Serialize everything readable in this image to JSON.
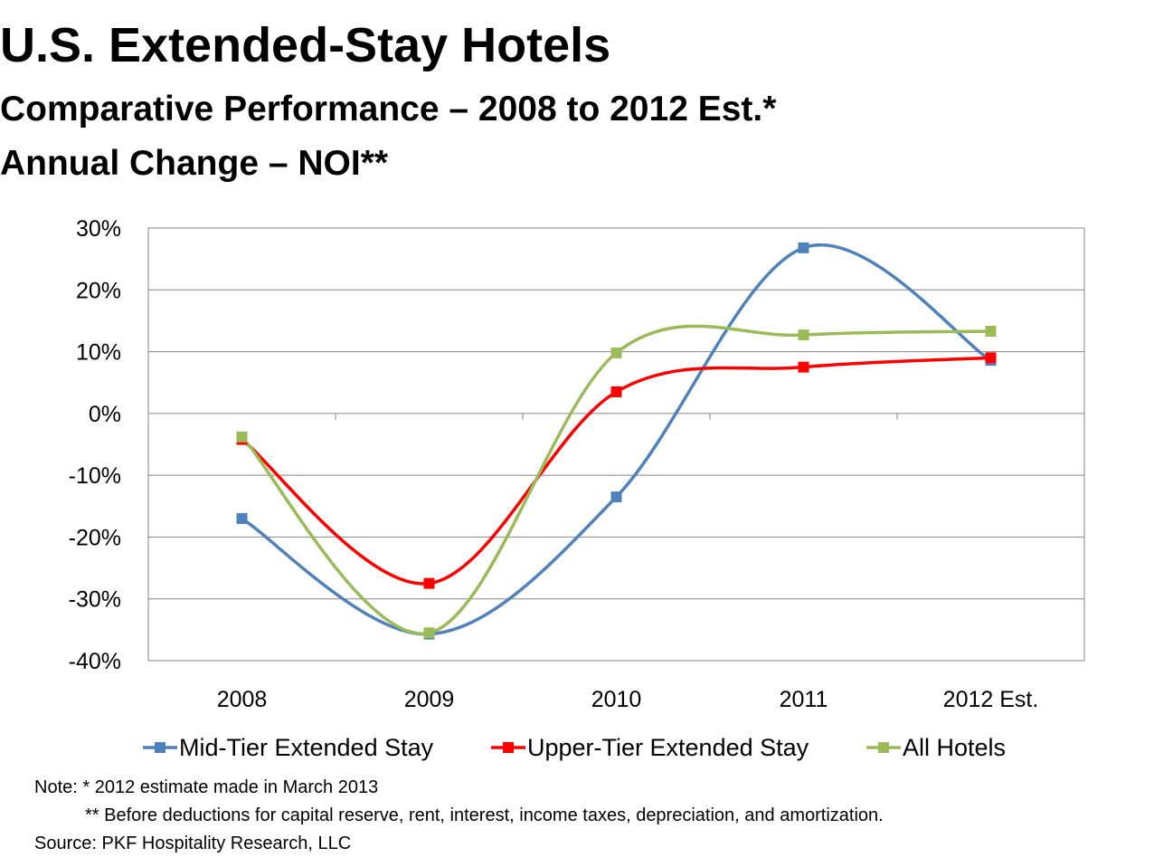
{
  "header": {
    "title": "U.S. Extended-Stay Hotels",
    "subtitle1": "Comparative Performance – 2008 to 2012 Est.*",
    "subtitle2": "Annual Change – NOI**"
  },
  "chart_data": {
    "type": "line",
    "categories": [
      "2008",
      "2009",
      "2010",
      "2011",
      "2012 Est."
    ],
    "y_ticks": [
      "30%",
      "20%",
      "10%",
      "0%",
      "-10%",
      "-20%",
      "-30%",
      "-40%"
    ],
    "ylim": [
      -40,
      30
    ],
    "grid": true,
    "legend_position": "bottom",
    "smoothed": true,
    "series": [
      {
        "name": "Mid-Tier Extended Stay",
        "color": "#4F81BD",
        "values": [
          -17.0,
          -35.7,
          -13.5,
          26.8,
          8.6
        ]
      },
      {
        "name": "Upper-Tier Extended Stay",
        "color": "#FF0000",
        "values": [
          -4.2,
          -27.5,
          3.5,
          7.5,
          9.0
        ]
      },
      {
        "name": "All Hotels",
        "color": "#9BBB59",
        "values": [
          -3.8,
          -35.5,
          9.8,
          12.7,
          13.3
        ]
      }
    ]
  },
  "notes": {
    "line1": "Note: * 2012 estimate made in March 2013",
    "line2": "** Before deductions for capital reserve, rent, interest, income taxes, depreciation, and amortization.",
    "source": "Source: PKF Hospitality Research, LLC"
  }
}
